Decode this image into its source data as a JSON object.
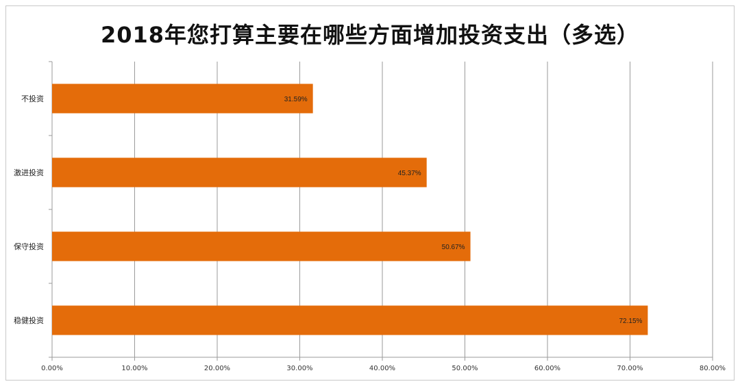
{
  "chart_data": {
    "type": "bar",
    "orientation": "horizontal",
    "title": "2018年您打算主要在哪些方面增加投资支出（多选）",
    "categories": [
      "不投资",
      "激进投资",
      "保守投资",
      "稳健投资"
    ],
    "values": [
      31.59,
      45.37,
      50.67,
      72.15
    ],
    "data_labels": [
      "31.59%",
      "45.37%",
      "50.67%",
      "72.15%"
    ],
    "x_ticks": [
      "0.00%",
      "10.00%",
      "20.00%",
      "30.00%",
      "40.00%",
      "50.00%",
      "60.00%",
      "70.00%",
      "80.00%"
    ],
    "xlim": [
      0,
      80
    ],
    "grid": true,
    "legend": "none",
    "bar_color": "#E46C0A"
  }
}
